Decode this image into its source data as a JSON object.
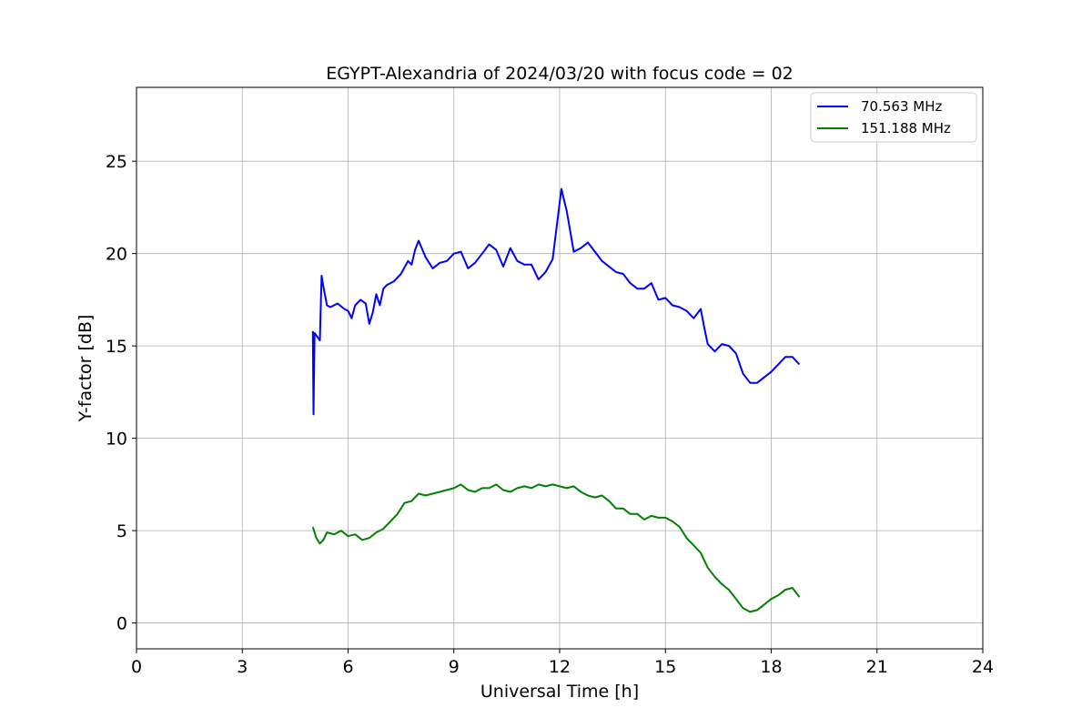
{
  "chart_data": {
    "type": "line",
    "title": "EGYPT-Alexandria of 2024/03/20 with focus code = 02",
    "xlabel": "Universal Time [h]",
    "ylabel": "Y-factor [dB]",
    "xlim": [
      0,
      24
    ],
    "ylim": [
      -1.4,
      29
    ],
    "x_ticks": [
      0,
      3,
      6,
      9,
      12,
      15,
      18,
      21,
      24
    ],
    "y_ticks": [
      0,
      5,
      10,
      15,
      20,
      25
    ],
    "grid": true,
    "legend_position": "top-right",
    "series": [
      {
        "name": "70.563 MHz",
        "color": "#0000ff",
        "x": [
          5.0,
          5.02,
          5.05,
          5.2,
          5.25,
          5.3,
          5.4,
          5.5,
          5.7,
          5.9,
          6.0,
          6.1,
          6.2,
          6.35,
          6.5,
          6.6,
          6.7,
          6.8,
          6.9,
          7.0,
          7.1,
          7.3,
          7.5,
          7.7,
          7.8,
          7.9,
          8.0,
          8.2,
          8.4,
          8.6,
          8.8,
          9.0,
          9.2,
          9.4,
          9.6,
          9.8,
          10.0,
          10.2,
          10.4,
          10.6,
          10.8,
          11.0,
          11.2,
          11.4,
          11.6,
          11.8,
          11.95,
          12.05,
          12.2,
          12.4,
          12.6,
          12.8,
          13.0,
          13.2,
          13.4,
          13.6,
          13.8,
          14.0,
          14.2,
          14.4,
          14.6,
          14.8,
          15.0,
          15.2,
          15.4,
          15.6,
          15.8,
          16.0,
          16.1,
          16.2,
          16.4,
          16.6,
          16.8,
          17.0,
          17.2,
          17.4,
          17.6,
          17.8,
          18.0,
          18.2,
          18.4,
          18.6,
          18.8
        ],
        "y": [
          15.8,
          11.3,
          15.7,
          15.3,
          18.8,
          18.2,
          17.2,
          17.1,
          17.3,
          17.0,
          16.9,
          16.5,
          17.2,
          17.5,
          17.3,
          16.2,
          16.8,
          17.8,
          17.2,
          18.1,
          18.3,
          18.5,
          18.9,
          19.6,
          19.4,
          20.2,
          20.7,
          19.8,
          19.2,
          19.5,
          19.6,
          20.0,
          20.1,
          19.2,
          19.5,
          20.0,
          20.5,
          20.2,
          19.3,
          20.3,
          19.6,
          19.4,
          19.4,
          18.6,
          19.0,
          19.7,
          22.0,
          23.5,
          22.3,
          20.1,
          20.3,
          20.6,
          20.1,
          19.6,
          19.3,
          19.0,
          18.9,
          18.4,
          18.1,
          18.1,
          18.4,
          17.5,
          17.6,
          17.2,
          17.1,
          16.9,
          16.5,
          17.0,
          16.0,
          15.1,
          14.7,
          15.1,
          15.0,
          14.6,
          13.5,
          13.0,
          13.0,
          13.3,
          13.6,
          14.0,
          14.4,
          14.4,
          14.0
        ]
      },
      {
        "name": "151.188 MHz",
        "color": "#008000",
        "x": [
          5.0,
          5.1,
          5.2,
          5.3,
          5.4,
          5.6,
          5.8,
          6.0,
          6.2,
          6.4,
          6.6,
          6.8,
          7.0,
          7.2,
          7.4,
          7.6,
          7.8,
          8.0,
          8.2,
          8.4,
          8.6,
          8.8,
          9.0,
          9.2,
          9.4,
          9.6,
          9.8,
          10.0,
          10.2,
          10.4,
          10.6,
          10.8,
          11.0,
          11.2,
          11.4,
          11.6,
          11.8,
          12.0,
          12.2,
          12.4,
          12.6,
          12.8,
          13.0,
          13.2,
          13.4,
          13.6,
          13.8,
          14.0,
          14.2,
          14.4,
          14.6,
          14.8,
          15.0,
          15.2,
          15.4,
          15.6,
          15.8,
          16.0,
          16.2,
          16.4,
          16.6,
          16.8,
          17.0,
          17.2,
          17.4,
          17.6,
          17.8,
          18.0,
          18.2,
          18.4,
          18.6,
          18.8
        ],
        "y": [
          5.2,
          4.6,
          4.3,
          4.5,
          4.9,
          4.8,
          5.0,
          4.7,
          4.8,
          4.5,
          4.6,
          4.9,
          5.1,
          5.5,
          5.9,
          6.5,
          6.6,
          7.0,
          6.9,
          7.0,
          7.1,
          7.2,
          7.3,
          7.5,
          7.2,
          7.1,
          7.3,
          7.3,
          7.5,
          7.2,
          7.1,
          7.3,
          7.4,
          7.3,
          7.5,
          7.4,
          7.5,
          7.4,
          7.3,
          7.4,
          7.1,
          6.9,
          6.8,
          6.9,
          6.6,
          6.2,
          6.2,
          5.9,
          5.9,
          5.6,
          5.8,
          5.7,
          5.7,
          5.5,
          5.2,
          4.6,
          4.2,
          3.8,
          3.0,
          2.5,
          2.1,
          1.8,
          1.3,
          0.8,
          0.6,
          0.7,
          1.0,
          1.3,
          1.5,
          1.8,
          1.9,
          1.4
        ]
      }
    ]
  }
}
